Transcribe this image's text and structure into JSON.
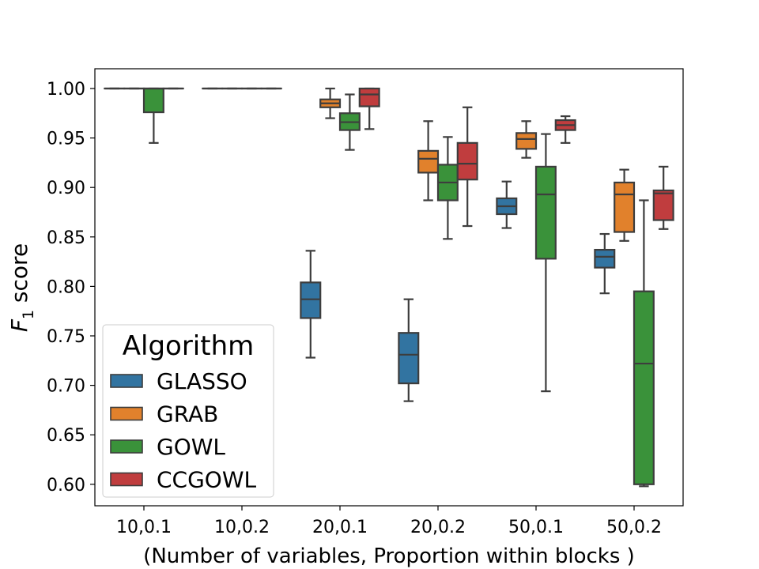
{
  "chart_data": {
    "type": "boxplot",
    "title": "",
    "xlabel": "(Number of variables, Proportion within blocks )",
    "ylabel_main": "F",
    "ylabel_sub": "1",
    "ylabel_rest": " score",
    "ylim": [
      0.58,
      1.02
    ],
    "yticks": [
      "1.00",
      "0.95",
      "0.90",
      "0.85",
      "0.80",
      "0.75",
      "0.70",
      "0.65",
      "0.60"
    ],
    "categories": [
      "10,0.1",
      "10,0.2",
      "20,0.1",
      "20,0.2",
      "50,0.1",
      "50,0.2"
    ],
    "legend": {
      "title": "Algorithm",
      "position": "lower-left",
      "entries": [
        "GLASSO",
        "GRAB",
        "GOWL",
        "CCGOWL"
      ]
    },
    "series": [
      {
        "name": "GLASSO",
        "color": "#3274a1",
        "boxes": [
          {
            "category": "10,0.1",
            "whisker_low": 1.0,
            "q1": 1.0,
            "median": 1.0,
            "q3": 1.0,
            "whisker_high": 1.0
          },
          {
            "category": "10,0.2",
            "whisker_low": 1.0,
            "q1": 1.0,
            "median": 1.0,
            "q3": 1.0,
            "whisker_high": 1.0
          },
          {
            "category": "20,0.1",
            "whisker_low": 0.728,
            "q1": 0.768,
            "median": 0.787,
            "q3": 0.804,
            "whisker_high": 0.836
          },
          {
            "category": "20,0.2",
            "whisker_low": 0.684,
            "q1": 0.702,
            "median": 0.731,
            "q3": 0.753,
            "whisker_high": 0.787
          },
          {
            "category": "50,0.1",
            "whisker_low": 0.859,
            "q1": 0.873,
            "median": 0.881,
            "q3": 0.889,
            "whisker_high": 0.906
          },
          {
            "category": "50,0.2",
            "whisker_low": 0.793,
            "q1": 0.819,
            "median": 0.83,
            "q3": 0.837,
            "whisker_high": 0.853
          }
        ]
      },
      {
        "name": "GRAB",
        "color": "#e1812c",
        "boxes": [
          {
            "category": "10,0.1",
            "whisker_low": 1.0,
            "q1": 1.0,
            "median": 1.0,
            "q3": 1.0,
            "whisker_high": 1.0
          },
          {
            "category": "10,0.2",
            "whisker_low": 1.0,
            "q1": 1.0,
            "median": 1.0,
            "q3": 1.0,
            "whisker_high": 1.0
          },
          {
            "category": "20,0.1",
            "whisker_low": 0.97,
            "q1": 0.981,
            "median": 0.985,
            "q3": 0.989,
            "whisker_high": 1.0
          },
          {
            "category": "20,0.2",
            "whisker_low": 0.887,
            "q1": 0.915,
            "median": 0.929,
            "q3": 0.937,
            "whisker_high": 0.967
          },
          {
            "category": "50,0.1",
            "whisker_low": 0.93,
            "q1": 0.939,
            "median": 0.949,
            "q3": 0.955,
            "whisker_high": 0.967
          },
          {
            "category": "50,0.2",
            "whisker_low": 0.846,
            "q1": 0.855,
            "median": 0.893,
            "q3": 0.905,
            "whisker_high": 0.918
          }
        ]
      },
      {
        "name": "GOWL",
        "color": "#3a923a",
        "boxes": [
          {
            "category": "10,0.1",
            "whisker_low": 0.945,
            "q1": 0.976,
            "median": 1.0,
            "q3": 1.0,
            "whisker_high": 1.0
          },
          {
            "category": "10,0.2",
            "whisker_low": 1.0,
            "q1": 1.0,
            "median": 1.0,
            "q3": 1.0,
            "whisker_high": 1.0
          },
          {
            "category": "20,0.1",
            "whisker_low": 0.938,
            "q1": 0.958,
            "median": 0.966,
            "q3": 0.975,
            "whisker_high": 0.994
          },
          {
            "category": "20,0.2",
            "whisker_low": 0.848,
            "q1": 0.887,
            "median": 0.905,
            "q3": 0.923,
            "whisker_high": 0.951
          },
          {
            "category": "50,0.1",
            "whisker_low": 0.694,
            "q1": 0.828,
            "median": 0.893,
            "q3": 0.921,
            "whisker_high": 0.954
          },
          {
            "category": "50,0.2",
            "whisker_low": 0.598,
            "q1": 0.6,
            "median": 0.722,
            "q3": 0.795,
            "whisker_high": 0.887
          }
        ]
      },
      {
        "name": "CCGOWL",
        "color": "#c03d3e",
        "boxes": [
          {
            "category": "10,0.1",
            "whisker_low": 1.0,
            "q1": 1.0,
            "median": 1.0,
            "q3": 1.0,
            "whisker_high": 1.0
          },
          {
            "category": "10,0.2",
            "whisker_low": 1.0,
            "q1": 1.0,
            "median": 1.0,
            "q3": 1.0,
            "whisker_high": 1.0
          },
          {
            "category": "20,0.1",
            "whisker_low": 0.959,
            "q1": 0.982,
            "median": 0.994,
            "q3": 1.0,
            "whisker_high": 1.0
          },
          {
            "category": "20,0.2",
            "whisker_low": 0.861,
            "q1": 0.908,
            "median": 0.924,
            "q3": 0.945,
            "whisker_high": 0.981
          },
          {
            "category": "50,0.1",
            "whisker_low": 0.945,
            "q1": 0.958,
            "median": 0.963,
            "q3": 0.968,
            "whisker_high": 0.972
          },
          {
            "category": "50,0.2",
            "whisker_low": 0.858,
            "q1": 0.867,
            "median": 0.894,
            "q3": 0.897,
            "whisker_high": 0.921
          }
        ]
      }
    ]
  }
}
